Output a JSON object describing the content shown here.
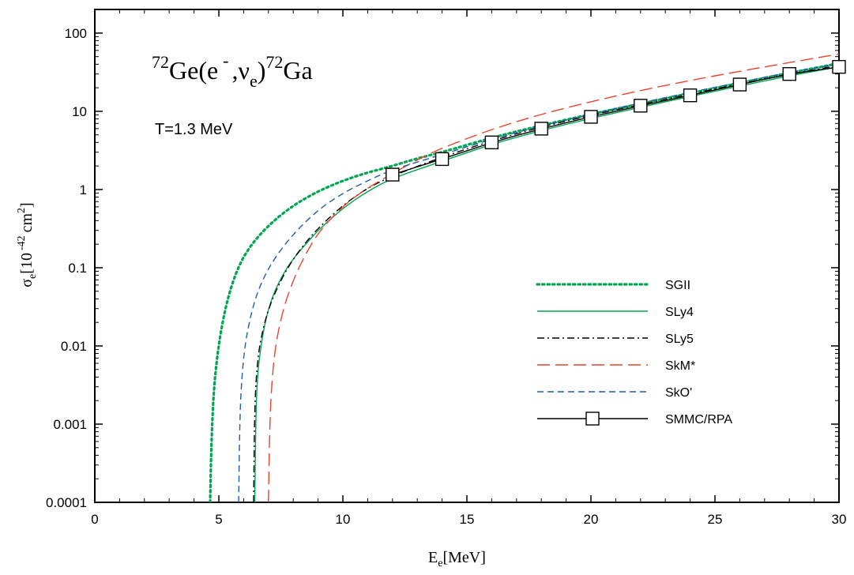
{
  "chart_data": {
    "type": "line",
    "title_parts": {
      "pre_sup": "72",
      "main1": "Ge(e",
      "minus_sup": "-",
      "main2": ",ν",
      "nu_sub": "e",
      "main3": ")",
      "post_sup": "72",
      "main4": "Ga"
    },
    "annotation": "T=1.3 MeV",
    "xlabel": {
      "base": "E",
      "sub": "e",
      "rest": "[MeV]"
    },
    "ylabel": {
      "base": "σ",
      "sub": "e",
      "mid": "[10",
      "exp": "-42",
      "unit": "cm",
      "unit_exp": "2",
      "close": "]"
    },
    "xlim": [
      0,
      30
    ],
    "ylim": [
      0.0001,
      200
    ],
    "yscale": "log",
    "x_ticks": [
      "0",
      "5",
      "10",
      "15",
      "20",
      "25",
      "30"
    ],
    "x_tick_values": [
      0,
      5,
      10,
      15,
      20,
      25,
      30
    ],
    "y_ticks": [
      "100",
      "10",
      "1",
      "0.1",
      "0.01",
      "0.001",
      "0.0001"
    ],
    "y_tick_values": [
      100,
      10,
      1,
      0.1,
      0.01,
      0.001,
      0.0001
    ],
    "legend_position": "center-right",
    "series": [
      {
        "name": "SGII",
        "color": "#00a651",
        "style": "dotted",
        "x": [
          4.65,
          4.7,
          4.8,
          5.0,
          5.3,
          5.7,
          6.2,
          7.0,
          8.0,
          9.0,
          10.0,
          11.0,
          12.0,
          13.0,
          14.0,
          16.0,
          18.0,
          20.0,
          22.0,
          24.0,
          26.0,
          28.0,
          30.0
        ],
        "y": [
          0.0001,
          0.0006,
          0.003,
          0.011,
          0.035,
          0.09,
          0.18,
          0.35,
          0.63,
          0.95,
          1.3,
          1.65,
          2.0,
          2.5,
          3.0,
          4.6,
          6.6,
          9.2,
          12.5,
          17.0,
          23.0,
          31.0,
          41.0
        ]
      },
      {
        "name": "SLy4",
        "color": "#00a651",
        "style": "solid",
        "x": [
          6.45,
          6.5,
          6.6,
          6.8,
          7.0,
          7.3,
          7.7,
          8.0,
          8.5,
          9.0,
          10.0,
          11.0,
          12.0,
          14.0,
          16.0,
          18.0,
          20.0,
          22.0,
          24.0,
          26.0,
          28.0,
          30.0
        ],
        "y": [
          0.0001,
          0.002,
          0.006,
          0.016,
          0.03,
          0.055,
          0.095,
          0.13,
          0.2,
          0.3,
          0.58,
          0.95,
          1.4,
          2.3,
          3.8,
          5.7,
          8.1,
          11.3,
          15.5,
          21.0,
          28.5,
          37.0
        ]
      },
      {
        "name": "SLy5",
        "color": "#000000",
        "style": "dashdot",
        "x": [
          6.4,
          6.45,
          6.55,
          6.7,
          7.0,
          7.5,
          8.0,
          8.5,
          9.0,
          10.0,
          11.0,
          12.0,
          14.0,
          16.0,
          18.0,
          20.0,
          22.0,
          24.0,
          26.0,
          28.0,
          30.0
        ],
        "y": [
          0.0001,
          0.002,
          0.006,
          0.013,
          0.03,
          0.07,
          0.13,
          0.21,
          0.32,
          0.63,
          1.05,
          1.5,
          2.6,
          4.2,
          6.3,
          8.9,
          12.2,
          16.6,
          22.4,
          30.0,
          38.5
        ]
      },
      {
        "name": "SkM*",
        "color": "#e8442e",
        "style": "longdash",
        "x": [
          7.0,
          7.05,
          7.15,
          7.3,
          7.6,
          8.0,
          8.5,
          9.0,
          10.0,
          11.0,
          12.0,
          13.0,
          14.0,
          16.0,
          18.0,
          20.0,
          22.0,
          24.0,
          26.0,
          28.0,
          30.0
        ],
        "y": [
          0.0001,
          0.001,
          0.004,
          0.011,
          0.03,
          0.07,
          0.15,
          0.28,
          0.62,
          1.05,
          1.6,
          2.4,
          3.4,
          5.9,
          9.2,
          13.3,
          18.5,
          24.8,
          32.5,
          42.0,
          54.0
        ]
      },
      {
        "name": "SkO'",
        "color": "#1f5fa8",
        "style": "dashed",
        "x": [
          5.8,
          5.85,
          5.95,
          6.1,
          6.4,
          6.8,
          7.3,
          8.0,
          9.0,
          10.0,
          11.0,
          12.0,
          14.0,
          16.0,
          18.0,
          20.0,
          22.0,
          24.0,
          26.0,
          28.0,
          30.0
        ],
        "y": [
          0.0001,
          0.0015,
          0.005,
          0.013,
          0.035,
          0.075,
          0.14,
          0.27,
          0.55,
          0.9,
          1.3,
          1.8,
          2.8,
          4.4,
          6.5,
          9.2,
          12.8,
          17.5,
          23.5,
          31.5,
          40.5
        ]
      },
      {
        "name": "SMMC/RPA",
        "color": "#000000",
        "style": "solid-square",
        "x": [
          12.0,
          14.0,
          16.0,
          18.0,
          20.0,
          22.0,
          24.0,
          26.0,
          28.0,
          30.0
        ],
        "y": [
          1.55,
          2.45,
          4.0,
          6.0,
          8.5,
          11.8,
          16.0,
          22.0,
          30.0,
          37.0
        ]
      }
    ]
  }
}
